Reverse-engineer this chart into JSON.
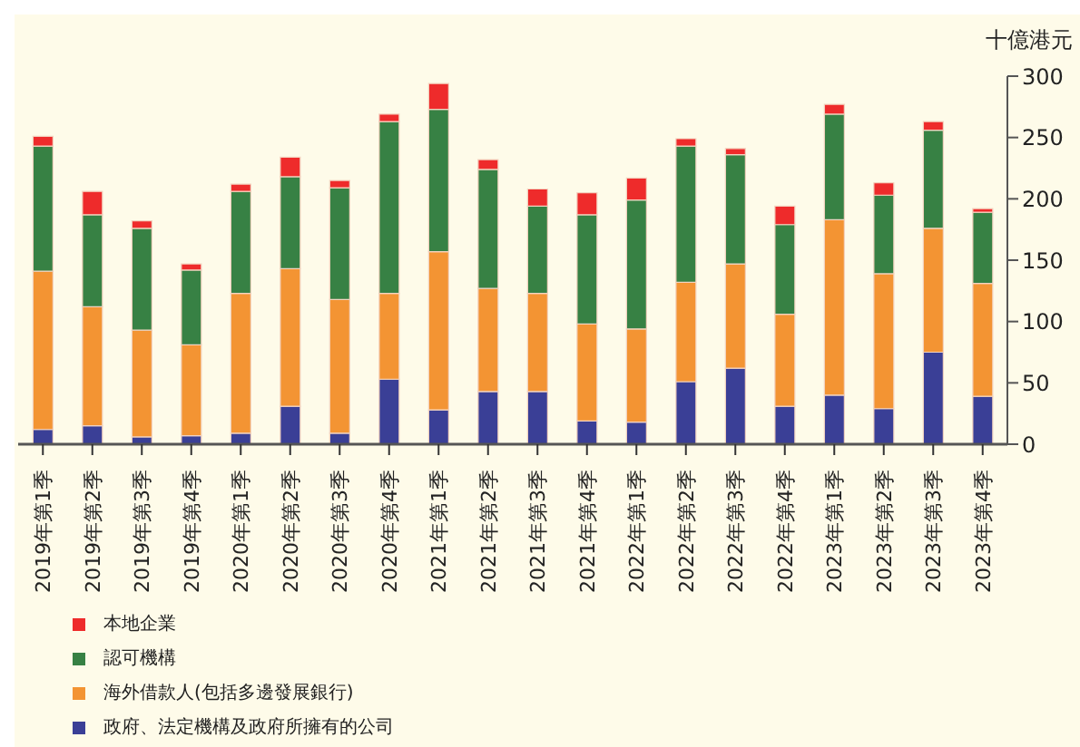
{
  "chart_data": {
    "type": "bar",
    "stacked": true,
    "ylabel": "十億港元",
    "categories": [
      "2019年第1季",
      "2019年第2季",
      "2019年第3季",
      "2019年第4季",
      "2020年第1季",
      "2020年第2季",
      "2020年第3季",
      "2020年第4季",
      "2021年第1季",
      "2021年第2季",
      "2021年第3季",
      "2021年第4季",
      "2022年第1季",
      "2022年第2季",
      "2022年第3季",
      "2022年第4季",
      "2023年第1季",
      "2023年第2季",
      "2023年第3季",
      "2023年第4季"
    ],
    "series": [
      {
        "name": "政府、法定機構及政府所擁有的公司",
        "color": "#3a3f96",
        "values": [
          12,
          15,
          6,
          7,
          9,
          31,
          9,
          53,
          28,
          43,
          43,
          19,
          18,
          51,
          62,
          31,
          40,
          29,
          75,
          39
        ]
      },
      {
        "name": "海外借款人(包括多邊發展銀行)",
        "color": "#f39433",
        "values": [
          129,
          97,
          87,
          74,
          114,
          112,
          109,
          70,
          129,
          84,
          80,
          79,
          76,
          81,
          85,
          75,
          143,
          110,
          101,
          92
        ]
      },
      {
        "name": "認可機構",
        "color": "#378144",
        "values": [
          102,
          75,
          83,
          61,
          83,
          75,
          91,
          140,
          116,
          97,
          71,
          89,
          105,
          111,
          89,
          73,
          86,
          64,
          80,
          58
        ]
      },
      {
        "name": "本地企業",
        "color": "#ee2b2b",
        "values": [
          8,
          19,
          6,
          5,
          6,
          16,
          6,
          6,
          21,
          8,
          14,
          18,
          18,
          6,
          5,
          15,
          8,
          10,
          7,
          3
        ]
      }
    ],
    "ylim": [
      0,
      300
    ],
    "yticks": [
      0,
      50,
      100,
      150,
      200,
      250,
      300
    ],
    "grid": false,
    "legend": "bottom left"
  }
}
